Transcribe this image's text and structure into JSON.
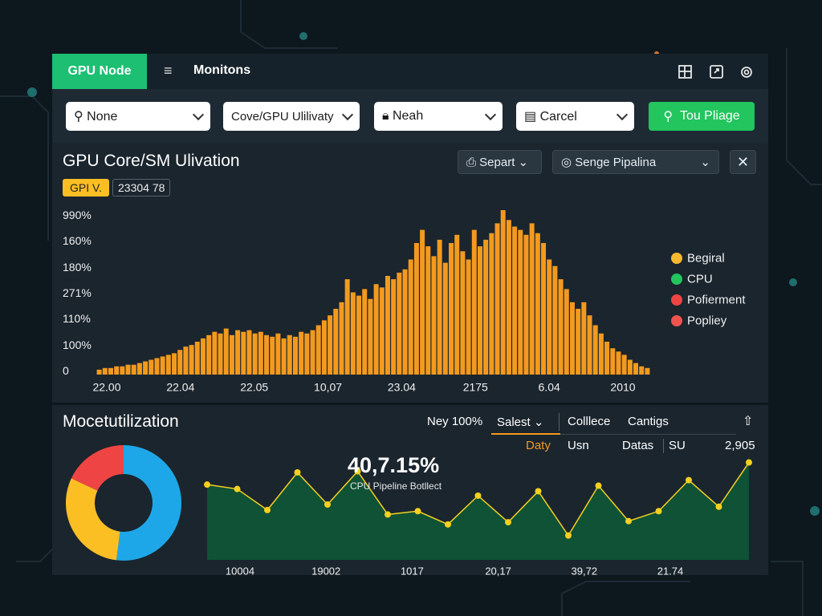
{
  "header": {
    "tab": "GPU Node",
    "menu": "Monitons"
  },
  "toolbar": {
    "dropdowns": [
      "None",
      "Cove/GPU Ulilivaty",
      "Neah",
      "Carcel"
    ],
    "button": "Tou Pliage"
  },
  "utilization_panel": {
    "title": "GPU Core/SM Ulivation",
    "badge": "GPI V.",
    "badge_value": "23304 78",
    "controls": [
      "Separt",
      "Senge Pipalina"
    ],
    "histogram": {
      "y_labels": [
        "990%",
        "160%",
        "180%",
        "271%",
        "110%",
        "100%",
        "0"
      ],
      "x_labels": [
        "22.00",
        "22.04",
        "22.05",
        "10,07",
        "23.04",
        "2175",
        "6.04",
        "2010"
      ],
      "ylim": [
        0,
        100
      ],
      "color": "#f39a1e",
      "values": [
        3,
        4,
        4,
        5,
        5,
        6,
        6,
        7,
        8,
        9,
        10,
        11,
        12,
        13,
        15,
        17,
        18,
        20,
        22,
        24,
        26,
        25,
        28,
        24,
        27,
        26,
        27,
        25,
        26,
        24,
        23,
        25,
        22,
        24,
        23,
        26,
        25,
        27,
        30,
        33,
        36,
        40,
        44,
        58,
        50,
        48,
        52,
        46,
        55,
        53,
        60,
        58,
        62,
        64,
        70,
        80,
        88,
        78,
        72,
        82,
        68,
        80,
        85,
        75,
        70,
        88,
        78,
        82,
        86,
        92,
        100,
        94,
        90,
        88,
        85,
        92,
        86,
        80,
        70,
        66,
        58,
        52,
        44,
        40,
        44,
        36,
        30,
        25,
        20,
        16,
        14,
        12,
        9,
        7,
        5,
        4
      ]
    },
    "legend": [
      {
        "name": "Begiral",
        "color": "#f5b82e"
      },
      {
        "name": "CPU",
        "color": "#22c55e"
      },
      {
        "name": "Pofierment",
        "color": "#ef4444"
      },
      {
        "name": "Popliey",
        "color": "#ef5350"
      }
    ]
  },
  "module_panel": {
    "title": "Mocetutilization",
    "controls": [
      "Ney 100%",
      "Salest",
      "Colllece",
      "Cantigs"
    ],
    "tabs": [
      "Daty",
      "Usn",
      "Datas",
      "SU",
      "2,905"
    ],
    "donut": {
      "values": [
        52,
        30,
        18
      ],
      "colors": [
        "#1ea7e8",
        "#fbbf24",
        "#ef4444"
      ]
    },
    "headline": "40,7.15%",
    "headline_caption": "CPU Pipeline Botllect",
    "line": {
      "ylim": [
        0,
        100
      ],
      "color": "#f5d020",
      "fill": "#0f5a36",
      "values": [
        68,
        64,
        45,
        79,
        50,
        80,
        41,
        44,
        32,
        58,
        34,
        62,
        22,
        67,
        35,
        44,
        72,
        48,
        88
      ],
      "x_labels": [
        "10004",
        "19002",
        "1017",
        "20,17",
        "39,72",
        "21.74"
      ]
    }
  }
}
